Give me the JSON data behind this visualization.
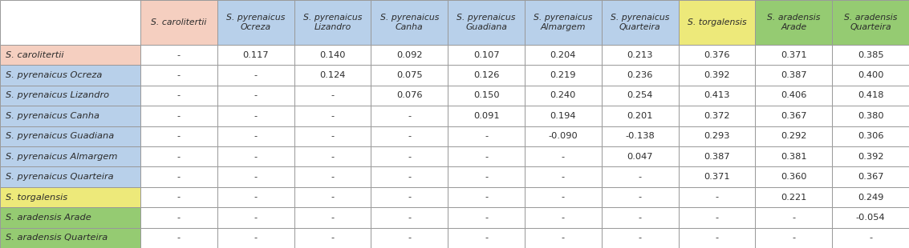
{
  "col_labels": [
    "S. carolitertii",
    "S. pyrenaicus\nOcreza",
    "S. pyrenaicus\nLizandro",
    "S. pyrenaicus\nCanha",
    "S. pyrenaicus\nGuadiana",
    "S. pyrenaicus\nAlmargem",
    "S. pyrenaicus\nQuarteira",
    "S. torgalensis",
    "S. aradensis\nArade",
    "S. aradensis\nQuarteira"
  ],
  "row_labels": [
    "S. carolitertii",
    "S. pyrenaicus Ocreza",
    "S. pyrenaicus Lizandro",
    "S. pyrenaicus Canha",
    "S. pyrenaicus Guadiana",
    "S. pyrenaicus Almargem",
    "S. pyrenaicus Quarteira",
    "S. torgalensis",
    "S. aradensis Arade",
    "S. aradensis Quarteira"
  ],
  "table_data": [
    [
      "-",
      "0.117",
      "0.140",
      "0.092",
      "0.107",
      "0.204",
      "0.213",
      "0.376",
      "0.371",
      "0.385"
    ],
    [
      "-",
      "-",
      "0.124",
      "0.075",
      "0.126",
      "0.219",
      "0.236",
      "0.392",
      "0.387",
      "0.400"
    ],
    [
      "-",
      "-",
      "-",
      "0.076",
      "0.150",
      "0.240",
      "0.254",
      "0.413",
      "0.406",
      "0.418"
    ],
    [
      "-",
      "-",
      "-",
      "-",
      "0.091",
      "0.194",
      "0.201",
      "0.372",
      "0.367",
      "0.380"
    ],
    [
      "-",
      "-",
      "-",
      "-",
      "-",
      "-0.090",
      "-0.138",
      "0.293",
      "0.292",
      "0.306"
    ],
    [
      "-",
      "-",
      "-",
      "-",
      "-",
      "-",
      "0.047",
      "0.387",
      "0.381",
      "0.392"
    ],
    [
      "-",
      "-",
      "-",
      "-",
      "-",
      "-",
      "-",
      "0.371",
      "0.360",
      "0.367"
    ],
    [
      "-",
      "-",
      "-",
      "-",
      "-",
      "-",
      "-",
      "-",
      "0.221",
      "0.249"
    ],
    [
      "-",
      "-",
      "-",
      "-",
      "-",
      "-",
      "-",
      "-",
      "-",
      "-0.054"
    ],
    [
      "-",
      "-",
      "-",
      "-",
      "-",
      "-",
      "-",
      "-",
      "-",
      "-"
    ]
  ],
  "col_colors": [
    "#f5cfc0",
    "#b8d0ea",
    "#b8d0ea",
    "#b8d0ea",
    "#b8d0ea",
    "#b8d0ea",
    "#b8d0ea",
    "#ede97a",
    "#95cb72",
    "#95cb72"
  ],
  "row_colors": [
    "#f5cfc0",
    "#b8d0ea",
    "#b8d0ea",
    "#b8d0ea",
    "#b8d0ea",
    "#b8d0ea",
    "#b8d0ea",
    "#ede97a",
    "#95cb72",
    "#95cb72"
  ],
  "border_color": "#999999",
  "text_color": "#2b2b2b",
  "header_fontsize": 7.8,
  "cell_fontsize": 8.2,
  "row_label_fontsize": 8.2,
  "fig_width": 11.33,
  "fig_height": 3.1,
  "dpi": 100
}
